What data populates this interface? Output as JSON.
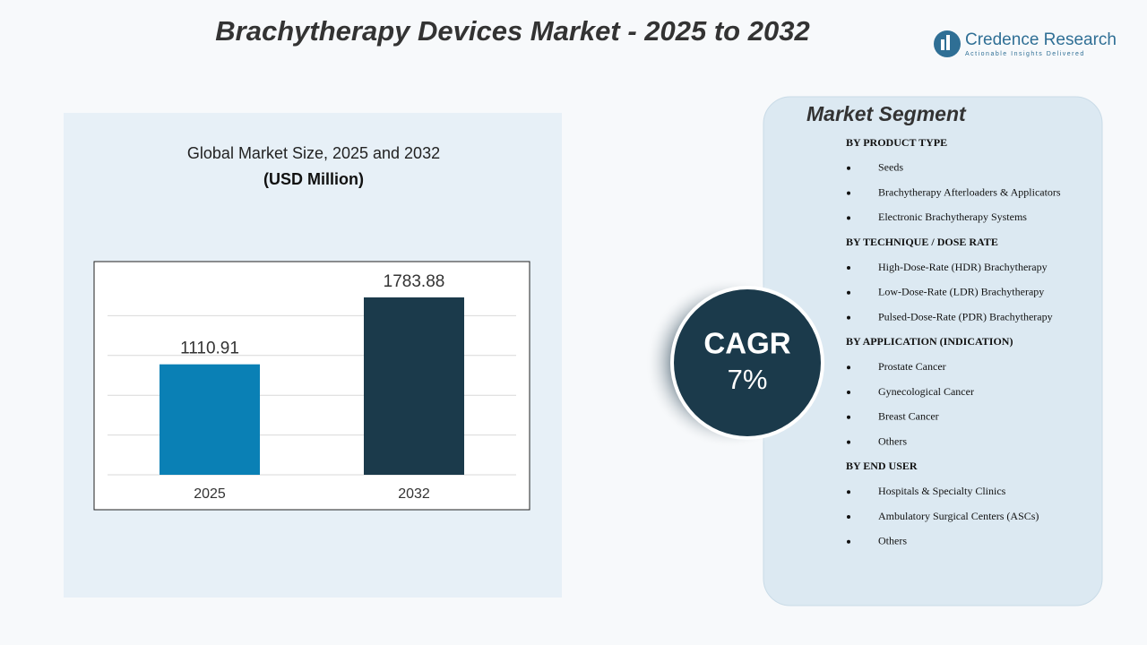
{
  "header": {
    "title": "Brachytherapy Devices Market - 2025 to 2032"
  },
  "logo": {
    "name": "Credence Research",
    "tagline": "Actionable Insights Delivered"
  },
  "chart_data": {
    "type": "bar",
    "title": "Global Market Size, 2025 and 2032",
    "subtitle": "(USD Million)",
    "categories": [
      "2025",
      "2032"
    ],
    "values": [
      1110.91,
      1783.88
    ],
    "colors": [
      "#0a80b5",
      "#1b3a4b"
    ],
    "ylim": [
      0,
      2000
    ],
    "grid": true
  },
  "cagr": {
    "label": "CAGR",
    "value": "7%"
  },
  "segments": {
    "title": "Market Segment",
    "groups": [
      {
        "heading": "BY PRODUCT  TYPE",
        "items": [
          "Seeds",
          "Brachytherapy Afterloaders & Applicators",
          "Electronic Brachytherapy Systems"
        ]
      },
      {
        "heading": "BY TECHNIQUE   / DOSE RATE",
        "items": [
          "High-Dose-Rate (HDR) Brachytherapy",
          "Low-Dose-Rate (LDR) Brachytherapy",
          "Pulsed-Dose-Rate (PDR) Brachytherapy"
        ]
      },
      {
        "heading": "BY APPLICATION  (INDICATION)",
        "items": [
          "Prostate Cancer",
          "Gynecological Cancer",
          "Breast Cancer",
          "Others"
        ]
      },
      {
        "heading": "BY END  USER",
        "items": [
          "Hospitals & Specialty Clinics",
          "Ambulatory Surgical Centers (ASCs)",
          "Others"
        ]
      }
    ]
  }
}
